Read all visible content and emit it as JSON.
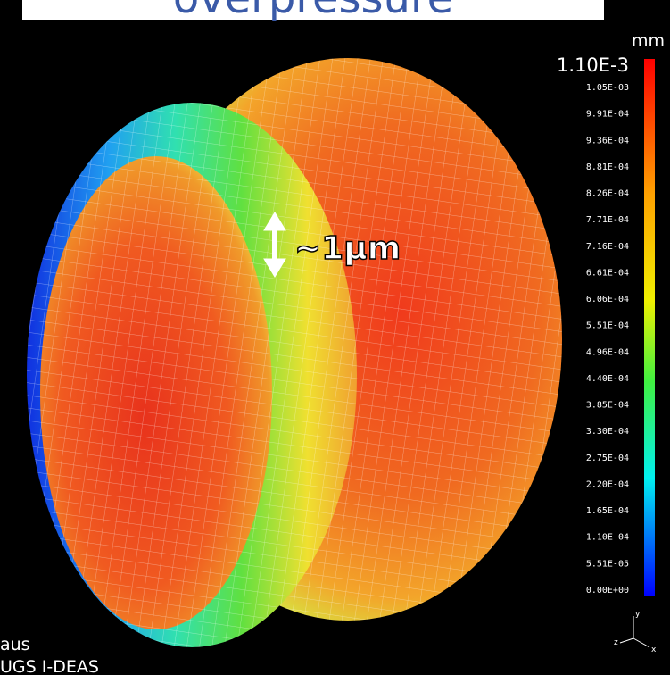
{
  "header": {
    "title": "overpressure"
  },
  "legend": {
    "unit": "mm",
    "max_label": "1.10E-3",
    "labels": [
      "1.05E-03",
      "9.91E-04",
      "9.36E-04",
      "8.81E-04",
      "8.26E-04",
      "7.71E-04",
      "7.16E-04",
      "6.61E-04",
      "6.06E-04",
      "5.51E-04",
      "4.96E-04",
      "4.40E-04",
      "3.85E-04",
      "3.30E-04",
      "2.75E-04",
      "2.20E-04",
      "1.65E-04",
      "1.10E-04",
      "5.51E-05",
      "0.00E+00"
    ]
  },
  "annotation": {
    "text": "~1µm"
  },
  "footer": {
    "line1": "aus",
    "line2": "UGS I-DEAS"
  },
  "triad": {
    "y": "y",
    "z": "z",
    "x": "x"
  }
}
